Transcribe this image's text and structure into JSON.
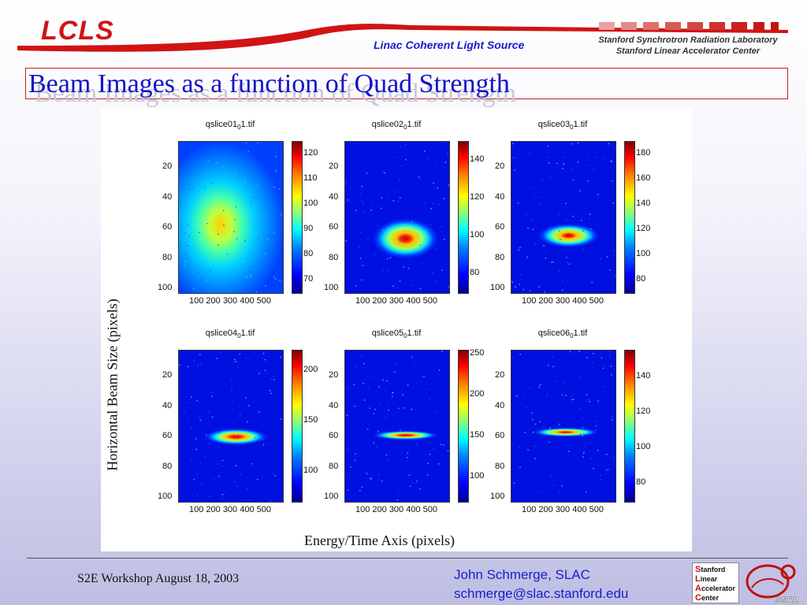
{
  "header": {
    "logo": "LCLS",
    "subtitle": "Linac Coherent Light Source",
    "lab_line1": "Stanford Synchrotron Radiation Laboratory",
    "lab_line2": "Stanford Linear Accelerator Center"
  },
  "slide": {
    "title": "Beam Images as a function of Quad Strength"
  },
  "figure": {
    "ylabel": "Horizontal Beam Size (pixels)",
    "xlabel": "Energy/Time Axis (pixels)",
    "panels": [
      {
        "title_pre": "qslice01",
        "title_sub": "0",
        "title_post": "1.tif",
        "yticks": [
          "20",
          "40",
          "60",
          "80",
          "100"
        ],
        "xticks": "100 200 300 400 500",
        "cticks": [
          "120",
          "110",
          "100",
          "90",
          "80",
          "70"
        ],
        "cmin": 65,
        "cmax": 125
      },
      {
        "title_pre": "qslice02",
        "title_sub": "0",
        "title_post": "1.tif",
        "yticks": [
          "20",
          "40",
          "60",
          "80",
          "100"
        ],
        "xticks": "100 200 300 400 500",
        "cticks": [
          "140",
          "120",
          "100",
          "80"
        ],
        "cmin": 70,
        "cmax": 150
      },
      {
        "title_pre": "qslice03",
        "title_sub": "0",
        "title_post": "1.tif",
        "yticks": [
          "20",
          "40",
          "60",
          "80",
          "100"
        ],
        "xticks": "100 200 300 400 500",
        "cticks": [
          "180",
          "160",
          "140",
          "120",
          "100",
          "80"
        ],
        "cmin": 70,
        "cmax": 190
      },
      {
        "title_pre": "qslice04",
        "title_sub": "0",
        "title_post": "1.tif",
        "yticks": [
          "20",
          "40",
          "60",
          "80",
          "100"
        ],
        "xticks": "100 200 300 400 500",
        "cticks": [
          "200",
          "150",
          "100"
        ],
        "cmin": 70,
        "cmax": 220
      },
      {
        "title_pre": "qslice05",
        "title_sub": "0",
        "title_post": "1.tif",
        "yticks": [
          "20",
          "40",
          "60",
          "80",
          "100"
        ],
        "xticks": "100 200 300 400 500",
        "cticks": [
          "250",
          "200",
          "150",
          "100"
        ],
        "cmin": 70,
        "cmax": 255
      },
      {
        "title_pre": "qslice06",
        "title_sub": "0",
        "title_post": "1.tif",
        "yticks": [
          "20",
          "40",
          "60",
          "80",
          "100"
        ],
        "xticks": "100 200 300 400 500",
        "cticks": [
          "140",
          "120",
          "100",
          "80"
        ],
        "cmin": 70,
        "cmax": 155
      }
    ]
  },
  "footer": {
    "event": "S2E Workshop August 18, 2003",
    "author": "John Schmerge, SLAC",
    "email": "schmerge@slac.stanford.edu",
    "slac_logo": [
      "S",
      "tanford",
      "L",
      "inear",
      "A",
      "ccelerator",
      "C",
      "enter"
    ],
    "ssrl_mark": "SSRL"
  },
  "colors": {
    "title_blue": "#1414c8",
    "logo_red": "#d01414"
  }
}
